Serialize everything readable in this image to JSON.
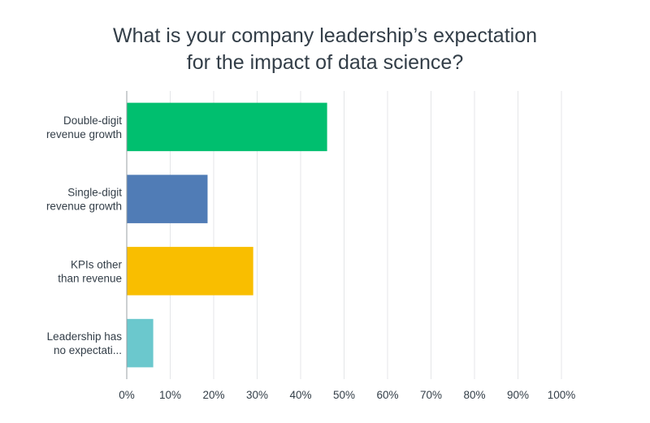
{
  "chart_data": {
    "type": "bar",
    "orientation": "horizontal",
    "title": [
      "What is your company leadership’s expectation",
      "for the impact of data science?"
    ],
    "categories": [
      [
        "Double-digit",
        "revenue growth"
      ],
      [
        "Single-digit",
        "revenue growth"
      ],
      [
        "KPIs other",
        "than revenue"
      ],
      [
        "Leadership has",
        "no expectati..."
      ]
    ],
    "values": [
      46,
      18.5,
      29,
      6
    ],
    "colors": [
      "#00bf6f",
      "#507cb6",
      "#f9be00",
      "#6bc8cd"
    ],
    "xlim": [
      0,
      100
    ],
    "ticks": [
      0,
      10,
      20,
      30,
      40,
      50,
      60,
      70,
      80,
      90,
      100
    ],
    "tick_labels": [
      "0%",
      "10%",
      "20%",
      "30%",
      "40%",
      "50%",
      "60%",
      "70%",
      "80%",
      "90%",
      "100%"
    ],
    "xlabel": "",
    "ylabel": "",
    "grid": true
  }
}
